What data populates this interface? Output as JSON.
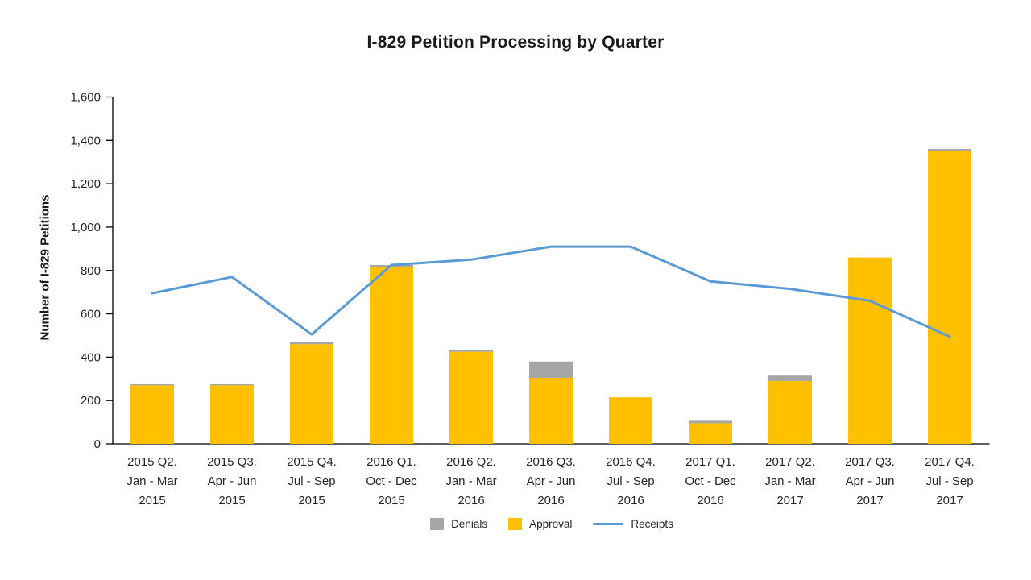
{
  "chart_data": {
    "type": "bar+line",
    "title": "I-829 Petition Processing by Quarter",
    "ylabel": "Number of I-829 Petitions",
    "xlabel": "",
    "ylim": [
      0,
      1600
    ],
    "ytick_step": 200,
    "grid": false,
    "legend_position": "bottom-center",
    "categories": [
      [
        "2015 Q2.",
        "Jan - Mar",
        "2015"
      ],
      [
        "2015 Q3.",
        "Apr - Jun",
        "2015"
      ],
      [
        "2015 Q4.",
        "Jul - Sep",
        "2015"
      ],
      [
        "2016 Q1.",
        "Oct - Dec",
        "2015"
      ],
      [
        "2016 Q2.",
        "Jan - Mar",
        "2016"
      ],
      [
        "2016 Q3.",
        "Apr - Jun",
        "2016"
      ],
      [
        "2016 Q4.",
        "Jul - Sep",
        "2016"
      ],
      [
        "2017 Q1.",
        "Oct - Dec",
        "2016"
      ],
      [
        "2017 Q2.",
        "Jan - Mar",
        "2017"
      ],
      [
        "2017 Q3.",
        "Apr - Jun",
        "2017"
      ],
      [
        "2017 Q4.",
        "Jul - Sep",
        "2017"
      ]
    ],
    "series": [
      {
        "name": "Denials",
        "type": "bar",
        "color": "#A6A6A6",
        "values": [
          5,
          5,
          10,
          10,
          10,
          75,
          0,
          15,
          25,
          0,
          10
        ]
      },
      {
        "name": "Approval",
        "type": "bar",
        "color": "#FFC000",
        "values": [
          270,
          270,
          460,
          815,
          425,
          305,
          215,
          95,
          290,
          860,
          1350
        ]
      },
      {
        "name": "Receipts",
        "type": "line",
        "color": "#5B9BD5",
        "values": [
          695,
          770,
          505,
          825,
          850,
          910,
          910,
          750,
          715,
          660,
          495
        ]
      }
    ],
    "bar_stack_order": [
      "Approval",
      "Denials"
    ]
  },
  "colors": {
    "axis": "#000000",
    "text": "#262626",
    "title": "#1a1a1a"
  }
}
